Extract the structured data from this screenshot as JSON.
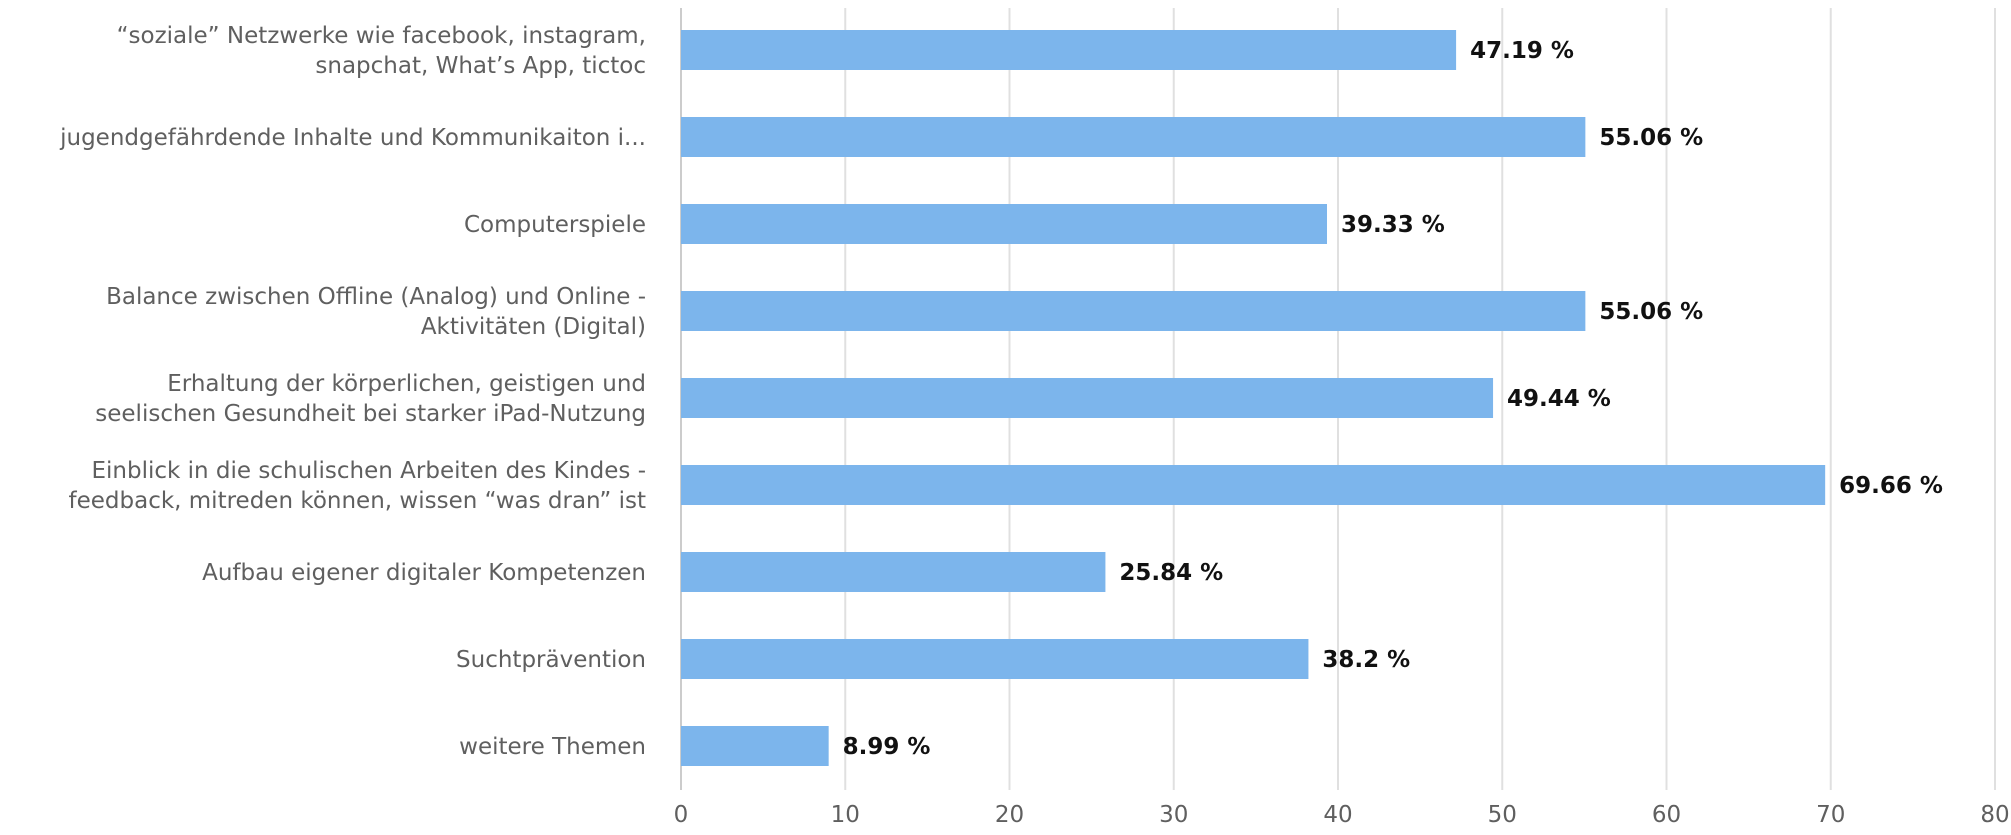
{
  "chart_data": {
    "type": "bar",
    "orientation": "horizontal",
    "categories": [
      [
        "“soziale” Netzwerke wie facebook, instagram,",
        "snapchat, What’s App, tictoc"
      ],
      [
        "jugendgefährdende Inhalte und Kommunikaiton i..."
      ],
      [
        "Computerspiele"
      ],
      [
        "Balance zwischen Offline (Analog) und Online -",
        "Aktivitäten (Digital)"
      ],
      [
        "Erhaltung der körperlichen, geistigen und",
        "seelischen Gesundheit bei starker iPad-Nutzung"
      ],
      [
        "Einblick in die schulischen Arbeiten des Kindes -",
        "feedback, mitreden können, wissen “was dran” ist"
      ],
      [
        "Aufbau eigener digitaler Kompetenzen"
      ],
      [
        "Suchtprävention"
      ],
      [
        "weitere Themen"
      ]
    ],
    "values": [
      47.19,
      55.06,
      39.33,
      55.06,
      49.44,
      69.66,
      25.84,
      38.2,
      8.99
    ],
    "data_labels": [
      "47.19 %",
      "55.06 %",
      "39.33 %",
      "55.06 %",
      "49.44 %",
      "69.66 %",
      "25.84 %",
      "38.2 %",
      "8.99 %"
    ],
    "xlim": [
      0,
      80
    ],
    "xticks": [
      0,
      10,
      20,
      30,
      40,
      50,
      60,
      70,
      80
    ],
    "xtick_labels": [
      "0",
      "10",
      "20",
      "30",
      "40",
      "50",
      "60",
      "70",
      "80"
    ],
    "grid": "vertical",
    "title": "",
    "xlabel": "",
    "ylabel": "",
    "colors": {
      "bar": "#7cb5ec",
      "grid": "#e0e0e0",
      "axis": "#cccccc",
      "label_text": "#5f5f5f",
      "value_text": "#111111"
    }
  }
}
